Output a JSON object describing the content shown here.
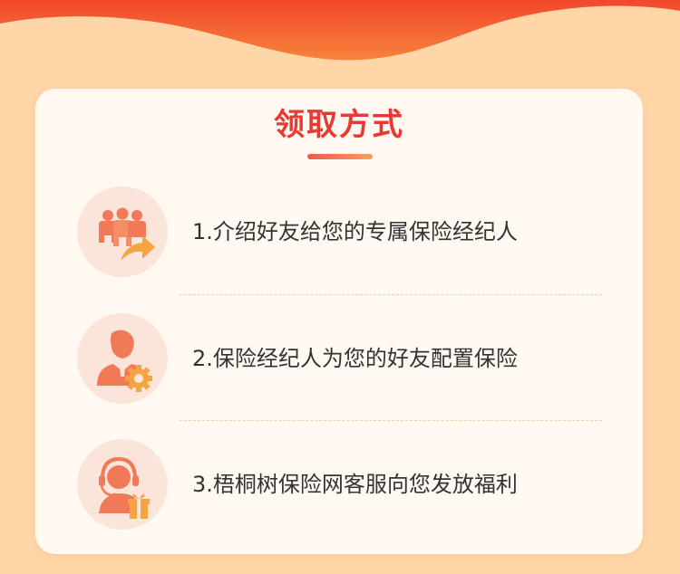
{
  "section": {
    "title": "领取方式"
  },
  "steps": [
    {
      "text": "1.介绍好友给您的专属保险经纪人",
      "icon": "referral-friends-icon"
    },
    {
      "text": "2.保险经纪人为您的好友配置保险",
      "icon": "broker-settings-icon"
    },
    {
      "text": "3.梧桐树保险网客服向您发放福利",
      "icon": "customer-service-gift-icon"
    }
  ],
  "colors": {
    "background": "#ffd6a8",
    "header_wave": "#f2582f",
    "card": "#fff9f2",
    "title": "#e83a35",
    "icon_bg": "#fbe5db",
    "icon_primary": "#f07a57",
    "icon_accent": "#f5a443",
    "text": "#333333",
    "divider": "#f0cfa8"
  }
}
